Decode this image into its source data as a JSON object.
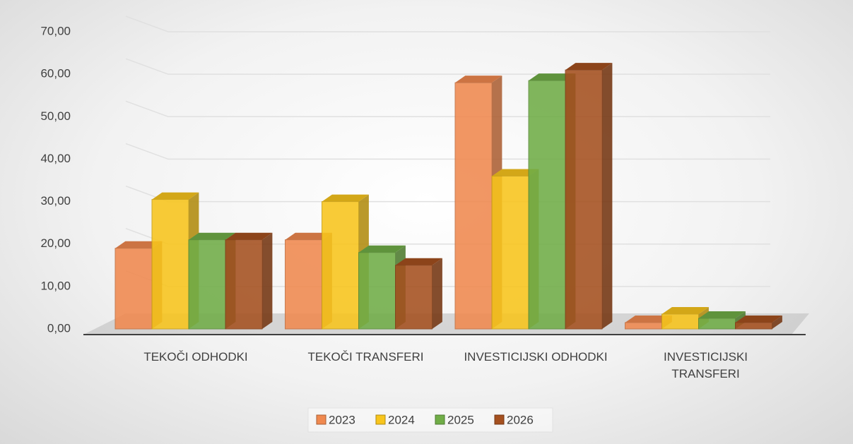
{
  "chart_data": {
    "type": "bar3d",
    "categories": [
      "TEKOČI ODHODKI",
      "TEKOČI TRANSFERI",
      "INVESTICIJSKI ODHODKI",
      "INVESTICIJSKI TRANSFERI"
    ],
    "series": [
      {
        "name": "2023",
        "color": "#f0894f",
        "values": [
          19,
          21,
          58,
          1.5
        ]
      },
      {
        "name": "2024",
        "color": "#f8c51c",
        "values": [
          30.5,
          30,
          36,
          3.5
        ]
      },
      {
        "name": "2025",
        "color": "#70ad47",
        "values": [
          21,
          18,
          58.5,
          2.5
        ]
      },
      {
        "name": "2026",
        "color": "#a5501f",
        "values": [
          21,
          15,
          61,
          1.5
        ]
      }
    ],
    "ylim": [
      0,
      70
    ],
    "yticks": [
      {
        "value": 0,
        "label": "0,00"
      },
      {
        "value": 10,
        "label": "10,00"
      },
      {
        "value": 20,
        "label": "20,00"
      },
      {
        "value": 30,
        "label": "30,00"
      },
      {
        "value": 40,
        "label": "40,00"
      },
      {
        "value": 50,
        "label": "50,00"
      },
      {
        "value": 60,
        "label": "60,00"
      },
      {
        "value": 70,
        "label": "70,00"
      }
    ],
    "grid": true,
    "legend": "bottom"
  }
}
